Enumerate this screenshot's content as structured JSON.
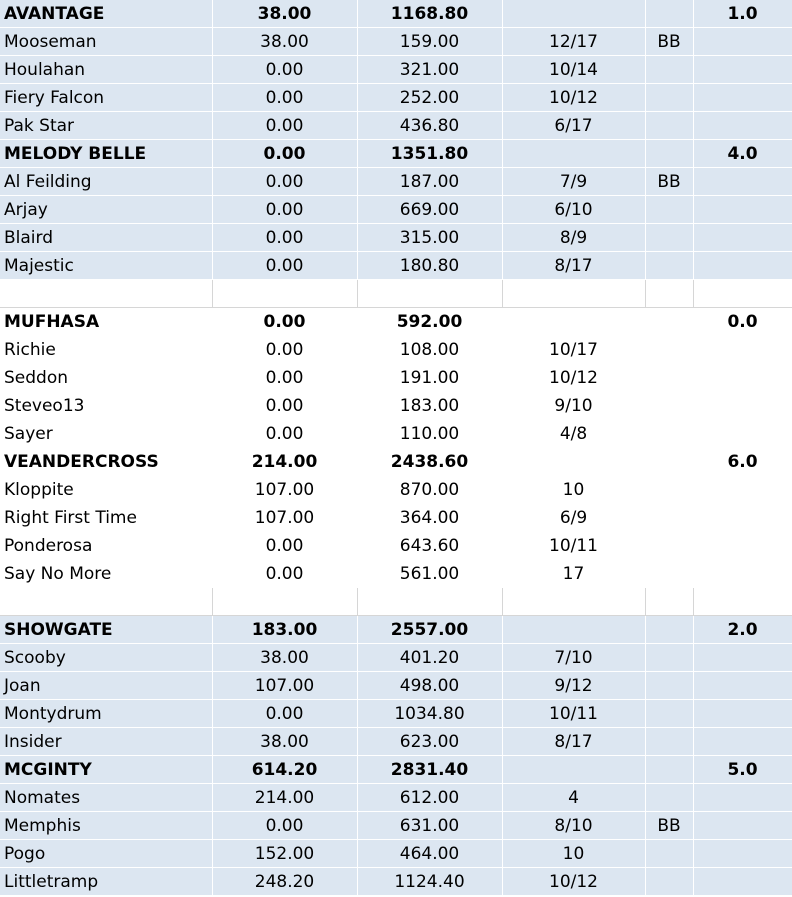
{
  "groups": [
    {
      "shaded": true,
      "teams": [
        {
          "name": "AVANTAGE",
          "col_a": "38.00",
          "col_b": "1168.80",
          "col_c": "",
          "col_d": "",
          "col_e": "1.0",
          "players": [
            {
              "name": "Mooseman",
              "col_a": "38.00",
              "col_b": "159.00",
              "col_c": "12/17",
              "col_d": "BB"
            },
            {
              "name": "Houlahan",
              "col_a": "0.00",
              "col_b": "321.00",
              "col_c": "10/14",
              "col_d": ""
            },
            {
              "name": "Fiery Falcon",
              "col_a": "0.00",
              "col_b": "252.00",
              "col_c": "10/12",
              "col_d": ""
            },
            {
              "name": "Pak Star",
              "col_a": "0.00",
              "col_b": "436.80",
              "col_c": "6/17",
              "col_d": ""
            }
          ]
        },
        {
          "name": "MELODY BELLE",
          "col_a": "0.00",
          "col_b": "1351.80",
          "col_c": "",
          "col_d": "",
          "col_e": "4.0",
          "players": [
            {
              "name": "Al Feilding",
              "col_a": "0.00",
              "col_b": "187.00",
              "col_c": "7/9",
              "col_d": "BB"
            },
            {
              "name": "Arjay",
              "col_a": "0.00",
              "col_b": "669.00",
              "col_c": "6/10",
              "col_d": ""
            },
            {
              "name": "Blaird",
              "col_a": "0.00",
              "col_b": "315.00",
              "col_c": "8/9",
              "col_d": ""
            },
            {
              "name": "Majestic",
              "col_a": "0.00",
              "col_b": "180.80",
              "col_c": "8/17",
              "col_d": ""
            }
          ]
        }
      ]
    },
    {
      "shaded": false,
      "teams": [
        {
          "name": "MUFHASA",
          "col_a": "0.00",
          "col_b": "592.00",
          "col_c": "",
          "col_d": "",
          "col_e": "0.0",
          "players": [
            {
              "name": "Richie",
              "col_a": "0.00",
              "col_b": "108.00",
              "col_c": "10/17",
              "col_d": ""
            },
            {
              "name": "Seddon",
              "col_a": "0.00",
              "col_b": "191.00",
              "col_c": "10/12",
              "col_d": ""
            },
            {
              "name": "Steveo13",
              "col_a": "0.00",
              "col_b": "183.00",
              "col_c": "9/10",
              "col_d": ""
            },
            {
              "name": "Sayer",
              "col_a": "0.00",
              "col_b": "110.00",
              "col_c": "4/8",
              "col_d": ""
            }
          ]
        },
        {
          "name": "VEANDERCROSS",
          "col_a": "214.00",
          "col_b": "2438.60",
          "col_c": "",
          "col_d": "",
          "col_e": "6.0",
          "players": [
            {
              "name": "Kloppite",
              "col_a": "107.00",
              "col_b": "870.00",
              "col_c": "10",
              "col_d": ""
            },
            {
              "name": "Right First Time",
              "col_a": "107.00",
              "col_b": "364.00",
              "col_c": "6/9",
              "col_d": ""
            },
            {
              "name": "Ponderosa",
              "col_a": "0.00",
              "col_b": "643.60",
              "col_c": "10/11",
              "col_d": ""
            },
            {
              "name": "Say No More",
              "col_a": "0.00",
              "col_b": "561.00",
              "col_c": "17",
              "col_d": ""
            }
          ]
        }
      ]
    },
    {
      "shaded": true,
      "teams": [
        {
          "name": "SHOWGATE",
          "col_a": "183.00",
          "col_b": "2557.00",
          "col_c": "",
          "col_d": "",
          "col_e": "2.0",
          "players": [
            {
              "name": "Scooby",
              "col_a": "38.00",
              "col_b": "401.20",
              "col_c": "7/10",
              "col_d": ""
            },
            {
              "name": "Joan",
              "col_a": "107.00",
              "col_b": "498.00",
              "col_c": "9/12",
              "col_d": ""
            },
            {
              "name": "Montydrum",
              "col_a": "0.00",
              "col_b": "1034.80",
              "col_c": "10/11",
              "col_d": ""
            },
            {
              "name": "Insider",
              "col_a": "38.00",
              "col_b": "623.00",
              "col_c": "8/17",
              "col_d": ""
            }
          ]
        },
        {
          "name": "MCGINTY",
          "col_a": "614.20",
          "col_b": "2831.40",
          "col_c": "",
          "col_d": "",
          "col_e": "5.0",
          "players": [
            {
              "name": "Nomates",
              "col_a": "214.00",
              "col_b": "612.00",
              "col_c": "4",
              "col_d": ""
            },
            {
              "name": "Memphis",
              "col_a": "0.00",
              "col_b": "631.00",
              "col_c": "8/10",
              "col_d": "BB"
            },
            {
              "name": "Pogo",
              "col_a": "152.00",
              "col_b": "464.00",
              "col_c": "10",
              "col_d": ""
            },
            {
              "name": "Littletramp",
              "col_a": "248.20",
              "col_b": "1124.40",
              "col_c": "10/12",
              "col_d": ""
            }
          ]
        }
      ]
    }
  ]
}
